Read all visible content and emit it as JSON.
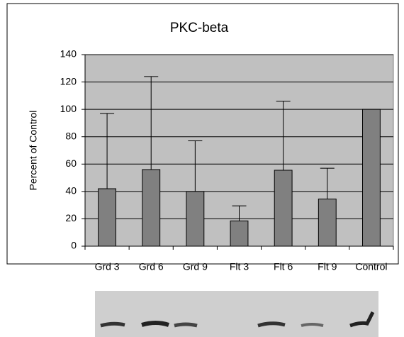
{
  "chart_data": {
    "type": "bar",
    "title": "PKC-beta",
    "y_label": "Percent of Control",
    "categories": [
      "Grd 3",
      "Grd 6",
      "Grd 9",
      "Flt 3",
      "Flt 6",
      "Flt 9",
      "Control"
    ],
    "values": [
      42,
      56,
      40,
      18.5,
      55.5,
      34.5,
      100
    ],
    "errors": [
      55,
      68,
      37,
      11,
      50.5,
      22.5,
      null
    ],
    "color": "#808080",
    "plot_background": "#c0c0c0",
    "ylim": [
      0,
      140
    ],
    "yticks": [
      0,
      20,
      40,
      60,
      80,
      100,
      120,
      140
    ],
    "grid": true
  }
}
